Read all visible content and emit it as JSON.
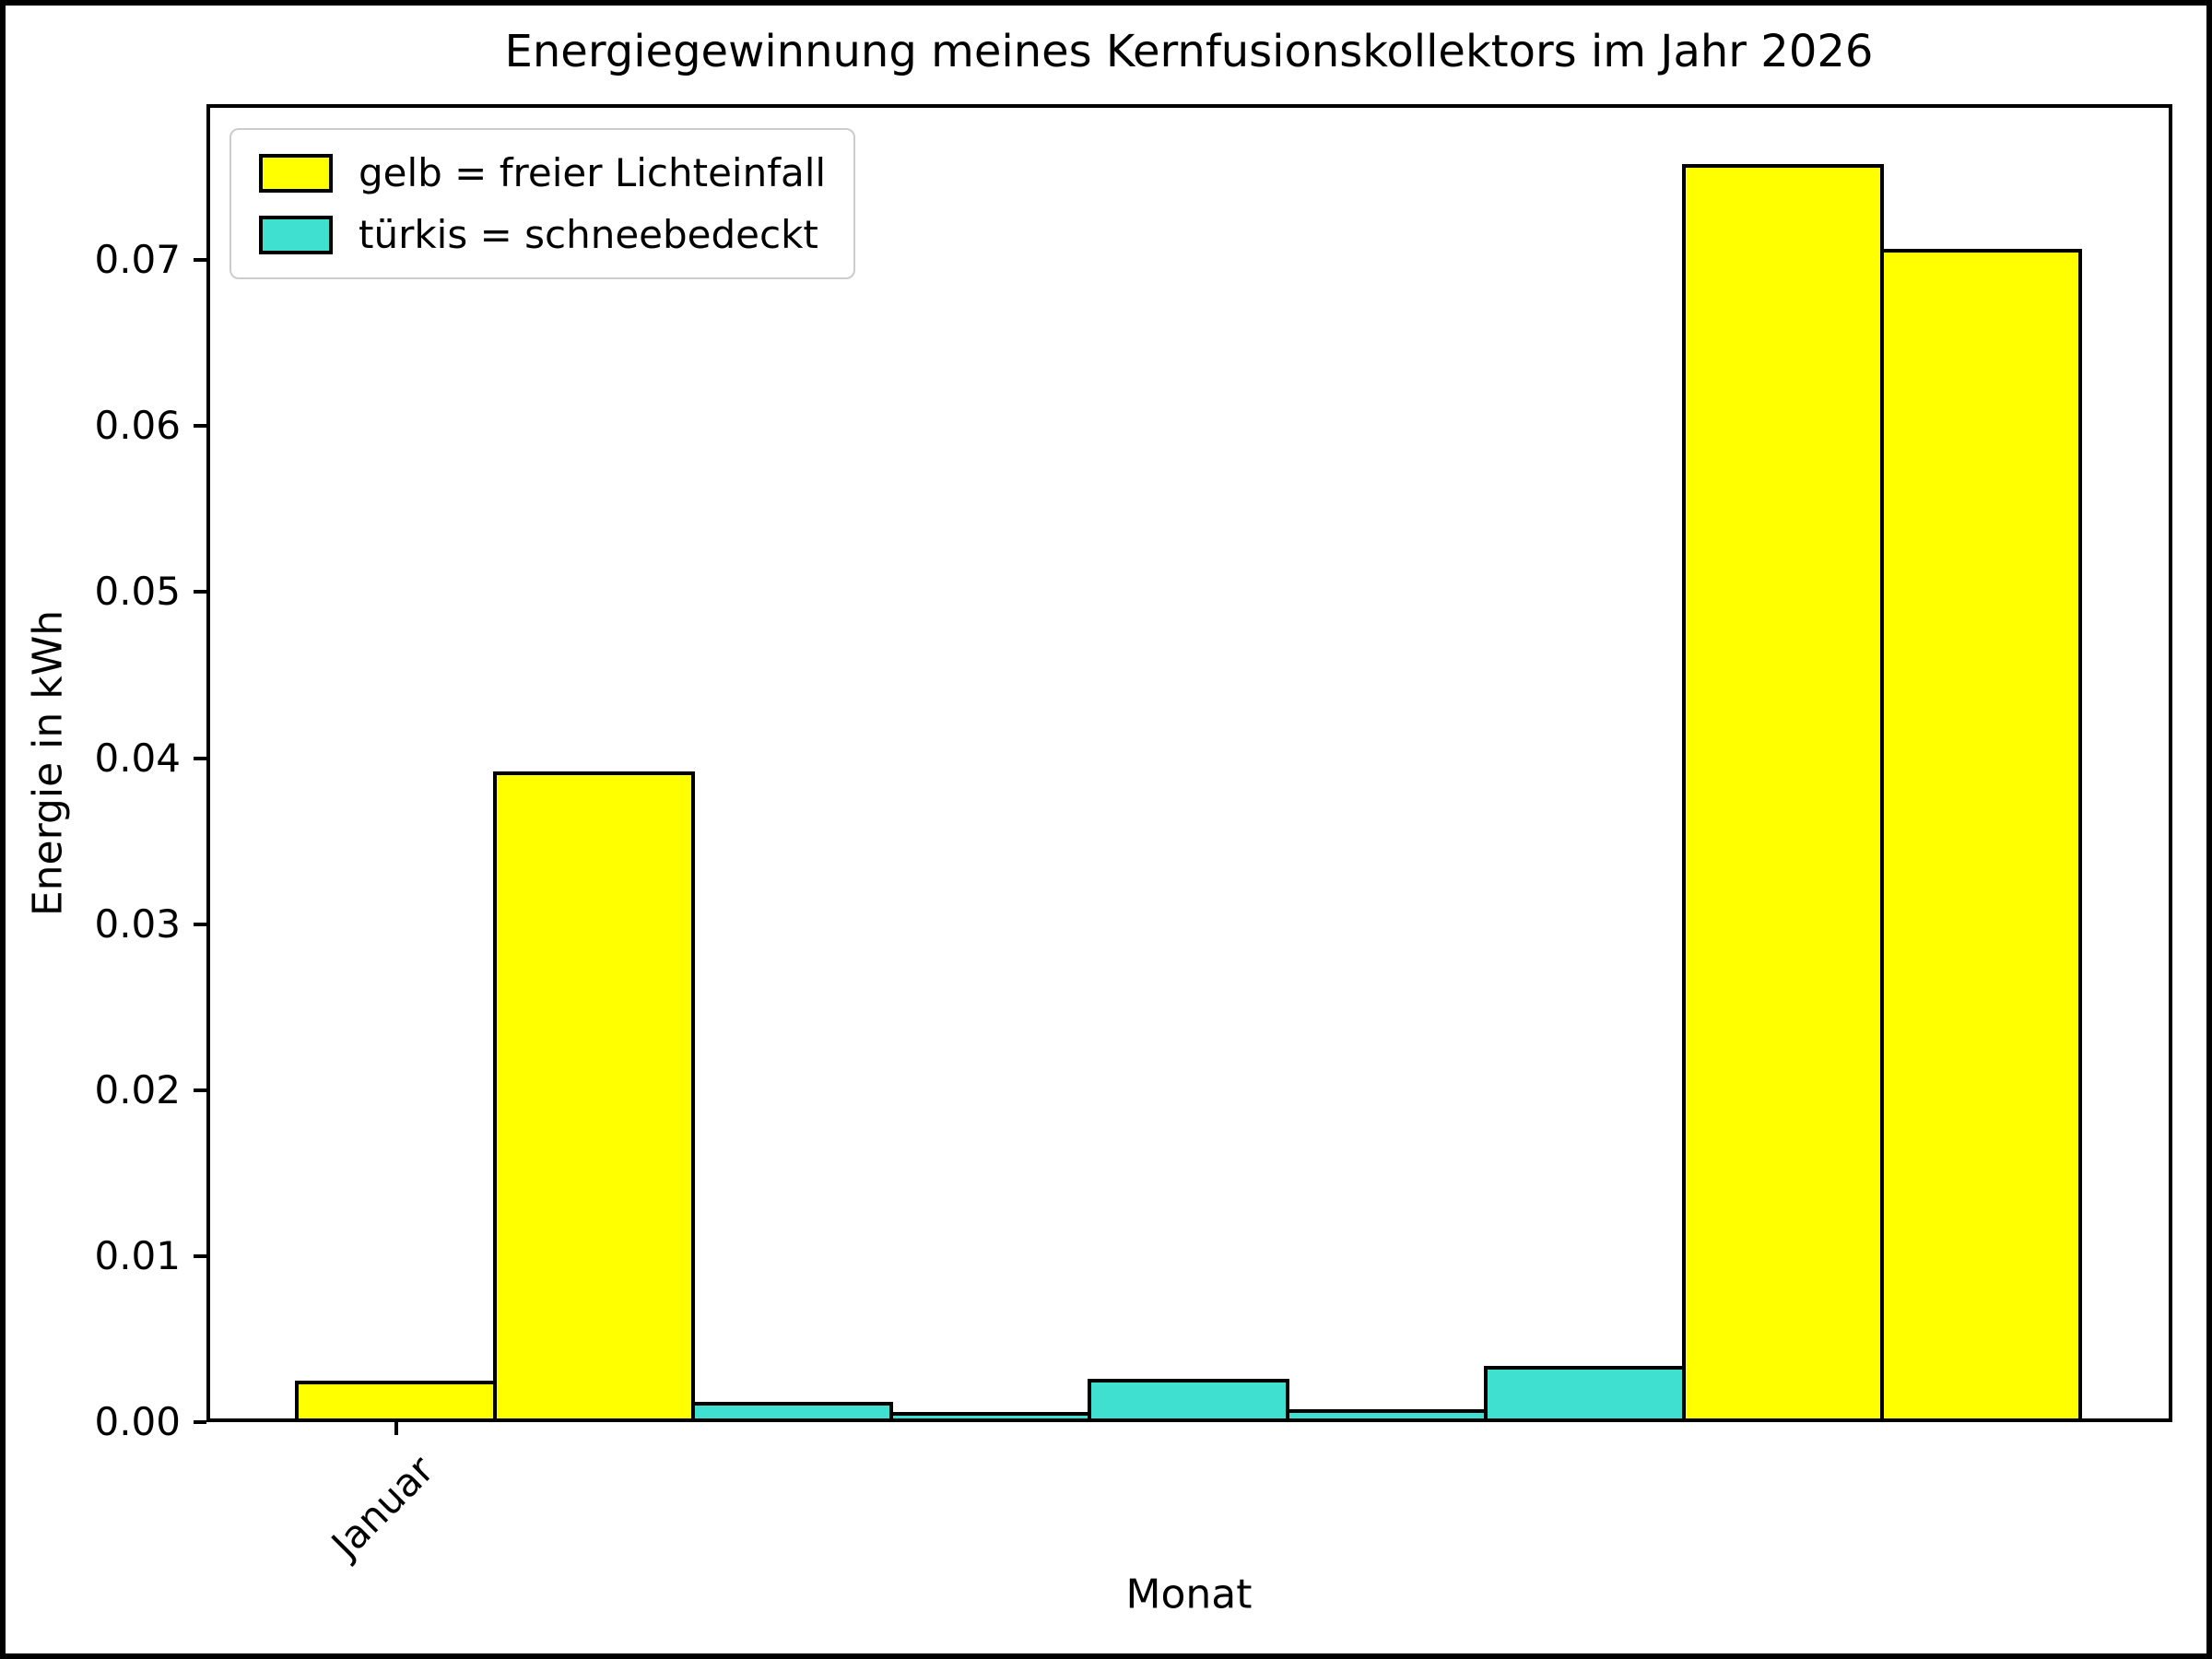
{
  "chart_data": {
    "type": "bar",
    "title": "Energiegewinnung meines Kernfusionskollektors im Jahr 2026",
    "xlabel": "Monat",
    "ylabel": "Energie in kWh",
    "ylim": [
      0,
      0.0794
    ],
    "grid": false,
    "y_ticks": [
      {
        "value": 0.0,
        "label": "0.00"
      },
      {
        "value": 0.01,
        "label": "0.01"
      },
      {
        "value": 0.02,
        "label": "0.02"
      },
      {
        "value": 0.03,
        "label": "0.03"
      },
      {
        "value": 0.04,
        "label": "0.04"
      },
      {
        "value": 0.05,
        "label": "0.05"
      },
      {
        "value": 0.06,
        "label": "0.06"
      },
      {
        "value": 0.07,
        "label": "0.07"
      }
    ],
    "x_ticks": [
      {
        "bar_index": 0,
        "label": "Januar",
        "rotation_deg": 45
      }
    ],
    "legend": {
      "position": "upper-left",
      "entries": [
        {
          "label": "gelb = freier Lichteinfall",
          "color": "#ffff00"
        },
        {
          "label": "türkis = schneebedeckt",
          "color": "#40e0d0"
        }
      ]
    },
    "bar_edge_color": "#000000",
    "bars": [
      {
        "value": 0.0025,
        "color": "#ffff00",
        "series": "freier Lichteinfall"
      },
      {
        "value": 0.0392,
        "color": "#ffff00",
        "series": "freier Lichteinfall"
      },
      {
        "value": 0.0012,
        "color": "#40e0d0",
        "series": "schneebedeckt"
      },
      {
        "value": 0.0006,
        "color": "#40e0d0",
        "series": "schneebedeckt"
      },
      {
        "value": 0.0026,
        "color": "#40e0d0",
        "series": "schneebedeckt"
      },
      {
        "value": 0.0008,
        "color": "#40e0d0",
        "series": "schneebedeckt"
      },
      {
        "value": 0.0034,
        "color": "#40e0d0",
        "series": "schneebedeckt"
      },
      {
        "value": 0.0758,
        "color": "#ffff00",
        "series": "freier Lichteinfall"
      },
      {
        "value": 0.0707,
        "color": "#ffff00",
        "series": "freier Lichteinfall"
      }
    ]
  }
}
